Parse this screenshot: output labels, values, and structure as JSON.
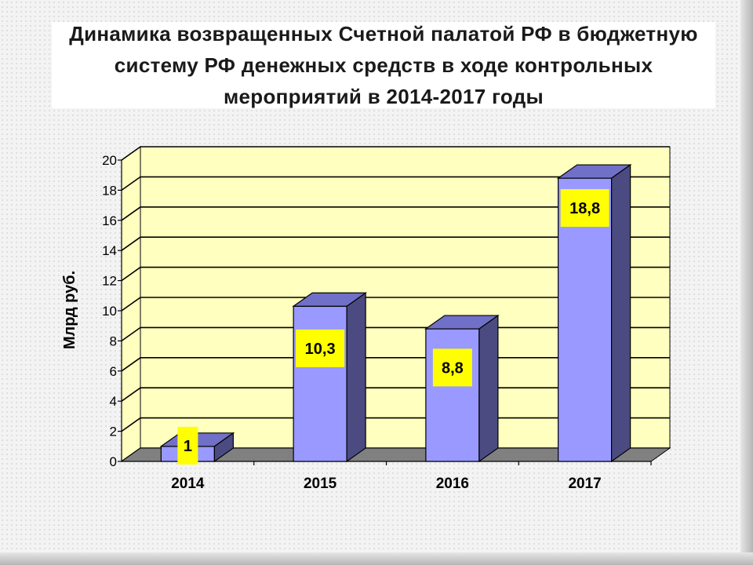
{
  "title": "Динамика возвращенных Счетной палатой РФ в бюджетную систему РФ денежных средств в ходе контрольных мероприятий в 2014-2017 годы",
  "colors": {
    "bar_front": "#9999ff",
    "bar_side": "#4b4b82",
    "bar_top": "#7070c8",
    "wall": "#ffffc0",
    "floor": "#808080",
    "label_bg": "#ffff00"
  },
  "chart_data": {
    "type": "bar",
    "categories": [
      "2014",
      "2015",
      "2016",
      "2017"
    ],
    "values": [
      1,
      10.3,
      8.8,
      18.8
    ],
    "value_labels": [
      "1",
      "10,3",
      "8,8",
      "18,8"
    ],
    "title": "Динамика возвращенных Счетной палатой РФ в бюджетную систему РФ денежных средств в ходе контрольных мероприятий в 2014-2017 годы",
    "xlabel": "",
    "ylabel": "Млрд руб.",
    "ylim": [
      0,
      20
    ],
    "yticks": [
      0,
      2,
      4,
      6,
      8,
      10,
      12,
      14,
      16,
      18,
      20
    ],
    "grid": true,
    "legend": "none",
    "style": "3d-column"
  }
}
